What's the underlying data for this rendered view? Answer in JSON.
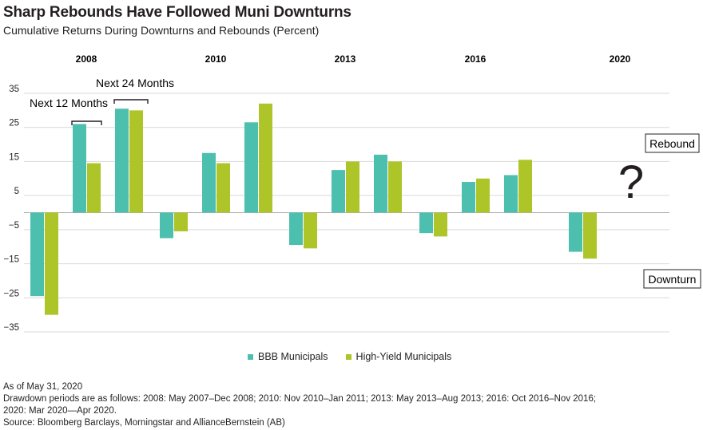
{
  "title": "Sharp Rebounds Have Followed Muni Downturns",
  "subtitle": "Cumulative Returns During Downturns and Rebounds (Percent)",
  "colors": {
    "bbb": "#4dbfae",
    "hy": "#aec52a",
    "grid": "#d9d9d9",
    "axis": "#b3b3b3"
  },
  "chart_data": {
    "type": "bar",
    "ylim": [
      -35,
      35
    ],
    "yticks": [
      35,
      25,
      15,
      5,
      -5,
      -15,
      -25,
      -35
    ],
    "grid": true,
    "legend_position": "bottom-center",
    "periods": [
      {
        "label": "2008",
        "groups": [
          [
            -24.5,
            -30
          ],
          [
            26,
            14.5
          ],
          [
            30.5,
            30
          ]
        ]
      },
      {
        "label": "2010",
        "groups": [
          [
            -7.5,
            -5.5
          ],
          [
            17.5,
            14.5
          ],
          [
            26.5,
            32
          ]
        ]
      },
      {
        "label": "2013",
        "groups": [
          [
            -9.5,
            -10.5
          ],
          [
            12.5,
            15
          ],
          [
            17,
            15
          ]
        ]
      },
      {
        "label": "2016",
        "groups": [
          [
            -6,
            -7
          ],
          [
            9,
            10
          ],
          [
            11,
            15.5
          ]
        ]
      },
      {
        "label": "2020",
        "groups": [
          [
            -11.5,
            -13.5
          ]
        ]
      }
    ],
    "series": [
      {
        "name": "BBB Municipals",
        "color": "#4dbfae"
      },
      {
        "name": "High-Yield Municipals",
        "color": "#aec52a"
      }
    ],
    "annotations": {
      "next12": "Next 12 Months",
      "next24": "Next 24 Months",
      "rebound": "Rebound",
      "downturn": "Downturn",
      "question": "?"
    }
  },
  "notes": {
    "asof": "As of May 31, 2020",
    "line1": "Drawdown periods are as follows: 2008: May 2007–Dec 2008; 2010: Nov 2010–Jan 2011; 2013: May 2013–Aug 2013; 2016: Oct 2016–Nov 2016;",
    "line2": "2020: Mar 2020—Apr 2020.",
    "source": "Source: Bloomberg Barclays, Morningstar and AllianceBernstein (AB)"
  }
}
